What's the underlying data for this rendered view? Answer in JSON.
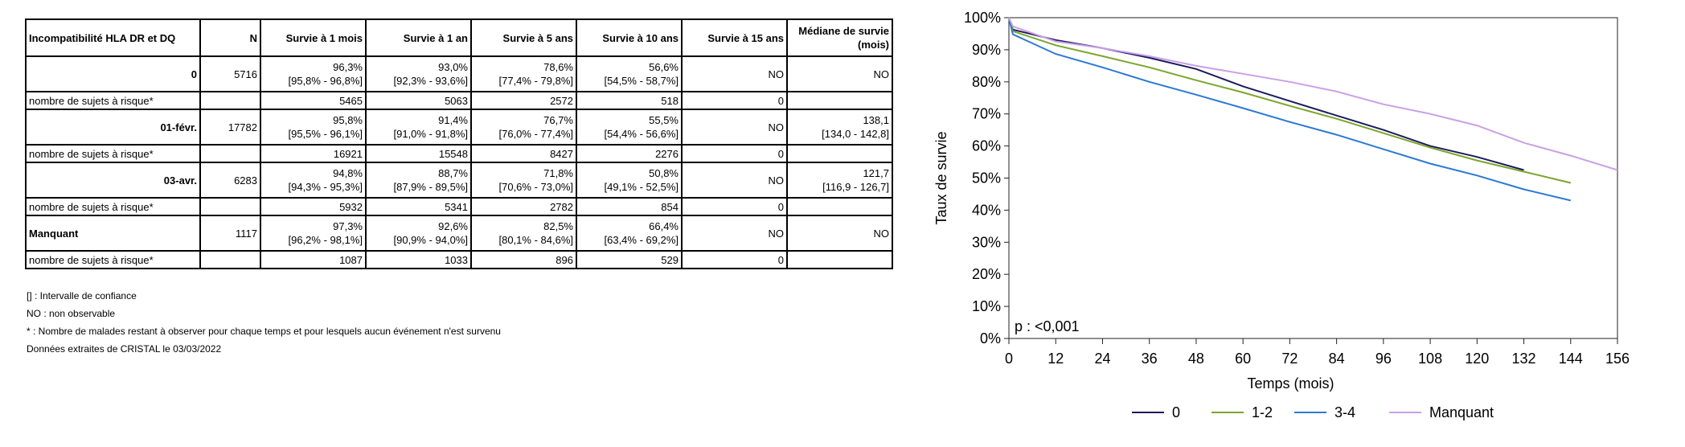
{
  "table": {
    "headers": [
      "Incompatibilité HLA DR et DQ",
      "N",
      "Survie à 1 mois",
      "Survie à 1 an",
      "Survie à 5 ans",
      "Survie à 10 ans",
      "Survie à 15 ans",
      "Médiane de survie (mois)"
    ],
    "groups": [
      {
        "label": "0",
        "n": "5716",
        "cells": [
          {
            "v": "96,3%",
            "ci": "[95,8% - 96,8%]"
          },
          {
            "v": "93,0%",
            "ci": "[92,3% - 93,6%]"
          },
          {
            "v": "78,6%",
            "ci": "[77,4% - 79,8%]"
          },
          {
            "v": "56,6%",
            "ci": "[54,5% - 58,7%]"
          },
          {
            "v": "NO",
            "ci": ""
          },
          {
            "v": "NO",
            "ci": ""
          }
        ],
        "risk_label": "nombre de sujets à risque*",
        "risk": [
          "5465",
          "5063",
          "2572",
          "518",
          "0",
          ""
        ]
      },
      {
        "label": "01-févr.",
        "n": "17782",
        "cells": [
          {
            "v": "95,8%",
            "ci": "[95,5% - 96,1%]"
          },
          {
            "v": "91,4%",
            "ci": "[91,0% - 91,8%]"
          },
          {
            "v": "76,7%",
            "ci": "[76,0% - 77,4%]"
          },
          {
            "v": "55,5%",
            "ci": "[54,4% - 56,6%]"
          },
          {
            "v": "NO",
            "ci": ""
          },
          {
            "v": "138,1",
            "ci": "[134,0 - 142,8]"
          }
        ],
        "risk_label": "nombre de sujets à risque*",
        "risk": [
          "16921",
          "15548",
          "8427",
          "2276",
          "0",
          ""
        ]
      },
      {
        "label": "03-avr.",
        "n": "6283",
        "cells": [
          {
            "v": "94,8%",
            "ci": "[94,3% - 95,3%]"
          },
          {
            "v": "88,7%",
            "ci": "[87,9% - 89,5%]"
          },
          {
            "v": "71,8%",
            "ci": "[70,6% - 73,0%]"
          },
          {
            "v": "50,8%",
            "ci": "[49,1% - 52,5%]"
          },
          {
            "v": "NO",
            "ci": ""
          },
          {
            "v": "121,7",
            "ci": "[116,9 - 126,7]"
          }
        ],
        "risk_label": "nombre de sujets à risque*",
        "risk": [
          "5932",
          "5341",
          "2782",
          "854",
          "0",
          ""
        ]
      },
      {
        "label": "Manquant",
        "n": "1117",
        "cells": [
          {
            "v": "97,3%",
            "ci": "[96,2% - 98,1%]"
          },
          {
            "v": "92,6%",
            "ci": "[90,9% - 94,0%]"
          },
          {
            "v": "82,5%",
            "ci": "[80,1% - 84,6%]"
          },
          {
            "v": "66,4%",
            "ci": "[63,4% - 69,2%]"
          },
          {
            "v": "NO",
            "ci": ""
          },
          {
            "v": "NO",
            "ci": ""
          }
        ],
        "risk_label": "nombre de sujets à risque*",
        "risk": [
          "1087",
          "1033",
          "896",
          "529",
          "0",
          ""
        ]
      }
    ]
  },
  "notes": [
    "[] : Intervalle de confiance",
    "NO : non observable",
    "* : Nombre de malades restant à observer pour chaque temps et pour lesquels aucun événement n'est survenu",
    "Données extraites de CRISTAL le 03/03/2022"
  ],
  "chart_data": {
    "type": "line",
    "xlabel": "Temps (mois)",
    "ylabel": "Taux de survie",
    "xlim": [
      0,
      156
    ],
    "ylim": [
      0,
      100
    ],
    "xticks": [
      0,
      12,
      24,
      36,
      48,
      60,
      72,
      84,
      96,
      108,
      120,
      132,
      144,
      156
    ],
    "yticks": [
      0,
      10,
      20,
      30,
      40,
      50,
      60,
      70,
      80,
      90,
      100
    ],
    "ytick_labels": [
      "0%",
      "10%",
      "20%",
      "30%",
      "40%",
      "50%",
      "60%",
      "70%",
      "80%",
      "90%",
      "100%"
    ],
    "annotation": "p : <0,001",
    "legend_position": "bottom",
    "series": [
      {
        "name": "0",
        "color": "#1c1a5e",
        "x": [
          0,
          1,
          12,
          24,
          36,
          48,
          60,
          72,
          84,
          96,
          108,
          120,
          132
        ],
        "y": [
          100,
          96.3,
          93.0,
          90.5,
          87.5,
          84.0,
          78.6,
          74.0,
          69.5,
          65.0,
          60.0,
          56.6,
          52.5
        ]
      },
      {
        "name": "1-2",
        "color": "#7aa62b",
        "x": [
          0,
          1,
          12,
          24,
          36,
          48,
          60,
          72,
          84,
          96,
          108,
          120,
          132,
          144
        ],
        "y": [
          100,
          95.8,
          91.4,
          88.0,
          84.5,
          80.5,
          76.7,
          72.5,
          68.5,
          64.0,
          59.5,
          55.5,
          52.0,
          48.5
        ]
      },
      {
        "name": "3-4",
        "color": "#2b79d4",
        "x": [
          0,
          1,
          12,
          24,
          36,
          48,
          60,
          72,
          84,
          96,
          108,
          120,
          132,
          144
        ],
        "y": [
          100,
          94.8,
          88.7,
          84.5,
          80.0,
          76.0,
          71.8,
          67.5,
          63.5,
          59.0,
          54.5,
          50.8,
          46.5,
          43.0
        ]
      },
      {
        "name": "Manquant",
        "color": "#c9a0e6",
        "x": [
          0,
          1,
          12,
          24,
          36,
          48,
          60,
          72,
          84,
          96,
          108,
          120,
          132,
          144,
          156
        ],
        "y": [
          100,
          97.3,
          92.6,
          90.5,
          88.0,
          85.0,
          82.5,
          80.0,
          77.0,
          73.0,
          70.0,
          66.4,
          61.0,
          57.0,
          52.5
        ]
      }
    ]
  }
}
